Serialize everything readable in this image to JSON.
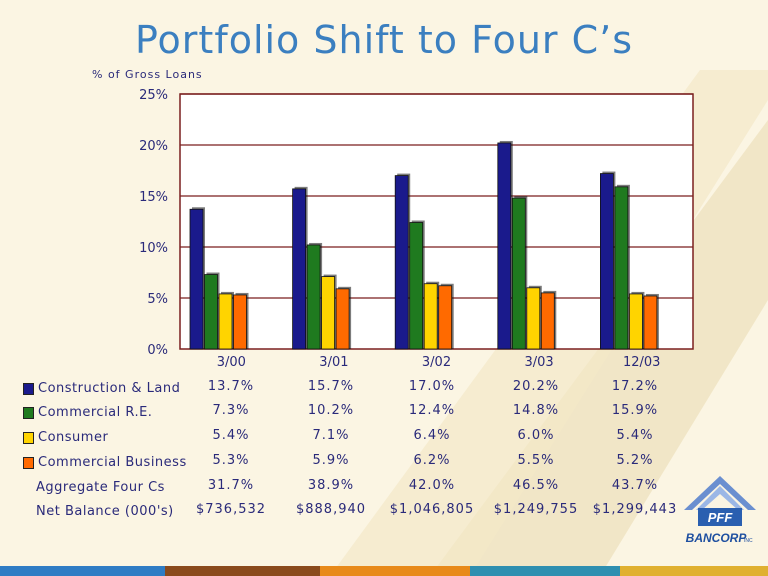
{
  "title": "Portfolio Shift to Four C’s",
  "subtitle": "% of Gross Loans",
  "logo": {
    "mark": "PFF",
    "name": "BANCORP",
    "suffix": "INC"
  },
  "colors": {
    "construction": "#1a1a8c",
    "commercial_re": "#1f7a1f",
    "consumer": "#ffd400",
    "commercial_business": "#ff6a00",
    "frame": "#7a1f1f",
    "grid": "#7a1f1f",
    "text": "#2a2a7a"
  },
  "chart_data": {
    "type": "bar",
    "categories": [
      "3/00",
      "3/01",
      "3/02",
      "3/03",
      "12/03"
    ],
    "series": [
      {
        "name": "Construction & Land",
        "values": [
          13.7,
          15.7,
          17.0,
          20.2,
          17.2
        ]
      },
      {
        "name": "Commercial R.E.",
        "values": [
          7.3,
          10.2,
          12.4,
          14.8,
          15.9
        ]
      },
      {
        "name": "Consumer",
        "values": [
          5.4,
          7.1,
          6.4,
          6.0,
          5.4
        ]
      },
      {
        "name": "Commercial Business",
        "values": [
          5.3,
          5.9,
          6.2,
          5.5,
          5.2
        ]
      }
    ],
    "ylim": [
      0,
      25
    ],
    "yticks": [
      "0%",
      "5%",
      "10%",
      "15%",
      "20%",
      "25%"
    ],
    "grid": true,
    "legend": "table-left"
  },
  "table": {
    "rows": [
      {
        "label": "Construction & Land",
        "values": [
          "13.7%",
          "15.7%",
          "17.0%",
          "20.2%",
          "17.2%"
        ]
      },
      {
        "label": "Commercial R.E.",
        "values": [
          "7.3%",
          "10.2%",
          "12.4%",
          "14.8%",
          "15.9%"
        ]
      },
      {
        "label": "Consumer",
        "values": [
          "5.4%",
          "7.1%",
          "6.4%",
          "6.0%",
          "5.4%"
        ]
      },
      {
        "label": "Commercial Business",
        "values": [
          "5.3%",
          "5.9%",
          "6.2%",
          "5.5%",
          "5.2%"
        ]
      },
      {
        "label": "Aggregate Four Cs",
        "values": [
          "31.7%",
          "38.9%",
          "42.0%",
          "46.5%",
          "43.7%"
        ]
      },
      {
        "label": "Net Balance (000's)",
        "values": [
          "$736,532",
          "$888,940",
          "$1,046,805",
          "$1,249,755",
          "$1,299,443"
        ]
      }
    ]
  }
}
